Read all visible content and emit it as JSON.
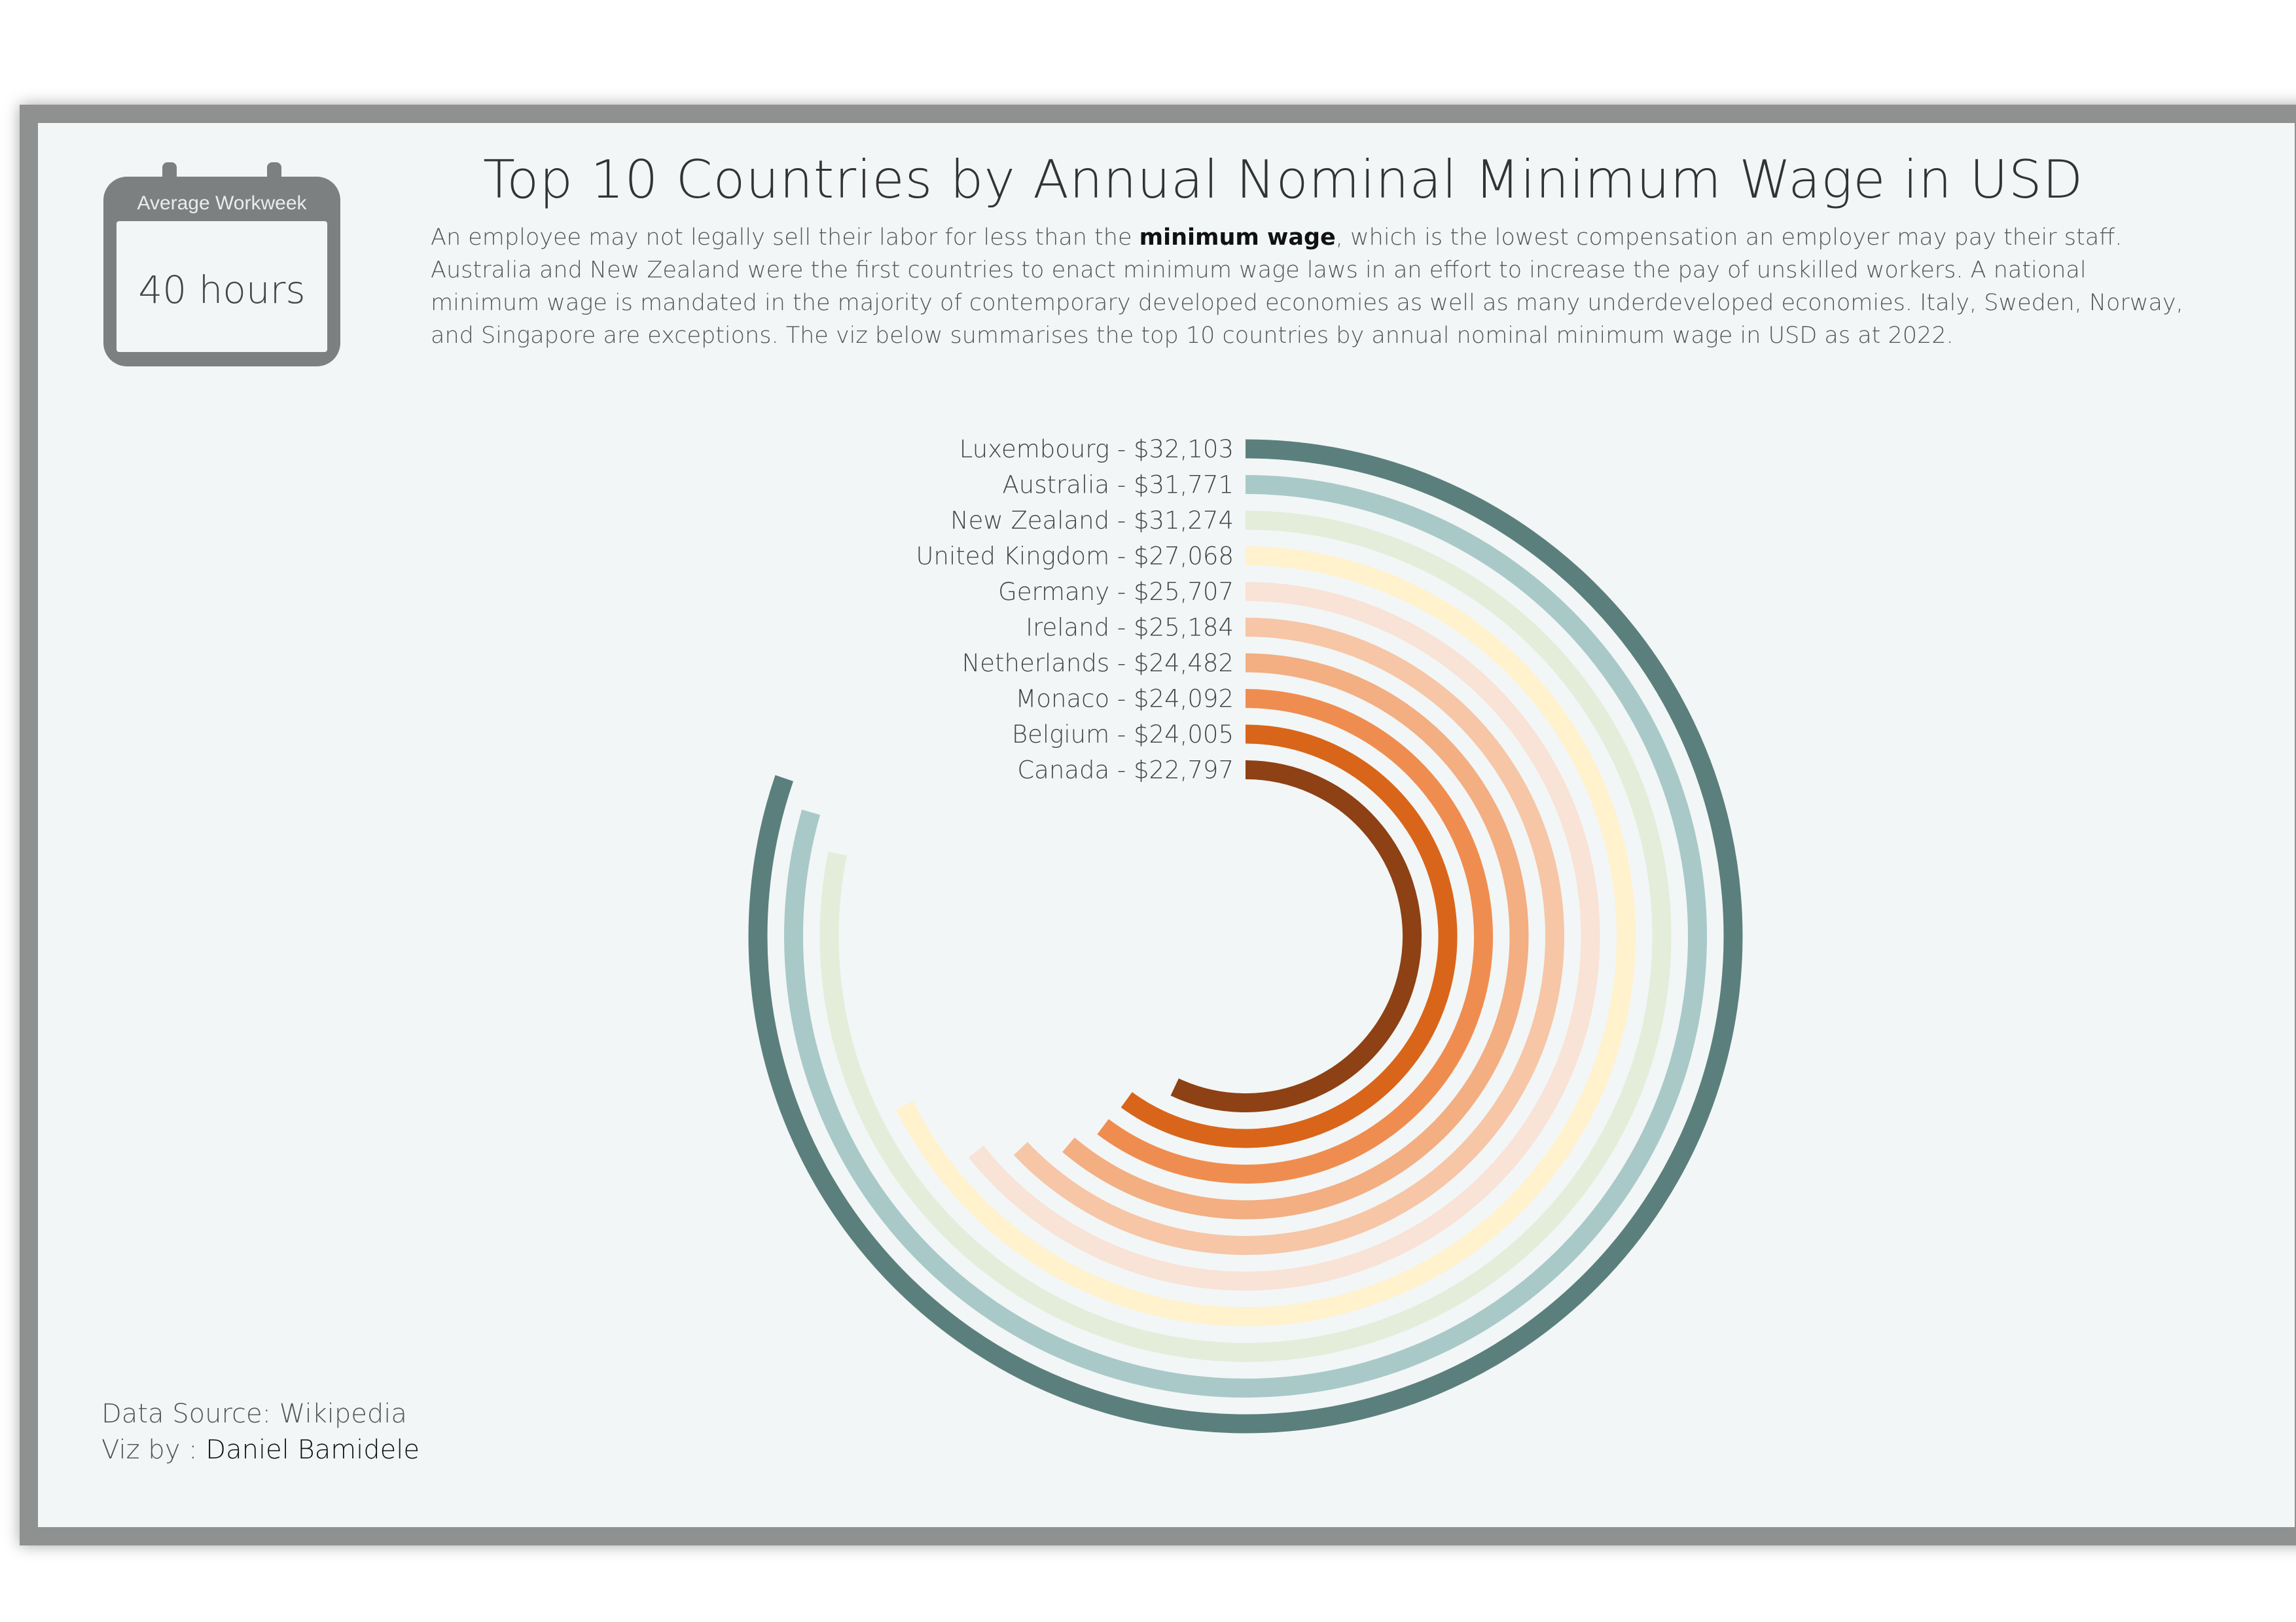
{
  "badge": {
    "label": "Average Workweek",
    "value": "40 hours"
  },
  "title": "Top  10 Countries by Annual Nominal Minimum Wage in USD",
  "description": {
    "before": "An employee may not legally sell their labor for less than the ",
    "highlight": "minimum wage",
    "after": ", which is the lowest compensation an employer may pay their staff. Australia and New Zealand were the first countries to enact minimum wage laws in an effort to increase the pay of unskilled workers. A national minimum wage is mandated in the majority of contemporary developed economies as well as many underdeveloped economies. Italy, Sweden, Norway, and Singapore are exceptions. The viz below summarises the top 10 countries by annual nominal minimum wage in USD as at 2022."
  },
  "footer": {
    "source": "Data Source: Wikipedia",
    "viz_by_prefix": "Viz by : ",
    "viz_by_name": "Daniel Bamidele"
  },
  "chart_data": {
    "type": "radial_bar",
    "categories": [
      "Luxembourg",
      "Australia",
      "New Zealand",
      "United Kingdom",
      "Germany",
      "Ireland",
      "Netherlands",
      "Monaco",
      "Belgium",
      "Canada"
    ],
    "values": [
      32103,
      31771,
      31274,
      27068,
      25707,
      25184,
      24482,
      24092,
      24005,
      22797
    ],
    "labels": [
      "Luxembourg - $32,103",
      "Australia - $31,771",
      "New Zealand - $31,274",
      "United Kingdom - $27,068",
      "Germany - $25,707",
      "Ireland - $25,184",
      "Netherlands - $24,482",
      "Monaco - $24,092",
      "Belgium - $24,005",
      "Canada - $22,797"
    ],
    "colors": [
      "#5b7f7c",
      "#a8c9c8",
      "#e3edda",
      "#fff2cc",
      "#f9e2d6",
      "#f6c6a6",
      "#f3ae82",
      "#ef8d50",
      "#d9651a",
      "#8d4114"
    ]
  }
}
